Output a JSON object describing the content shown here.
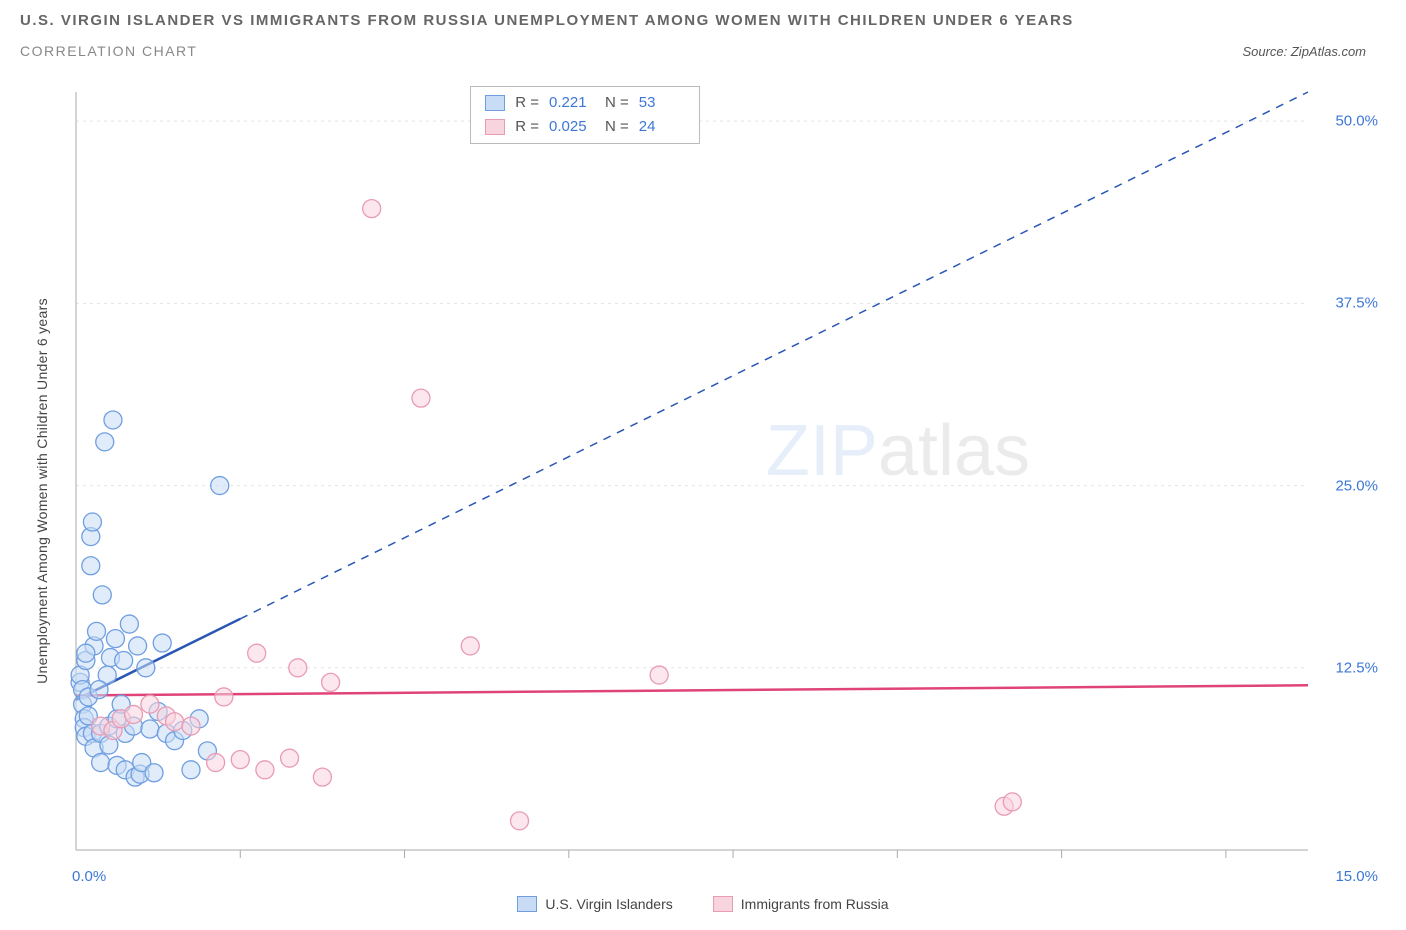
{
  "header": {
    "title_line1": "U.S. VIRGIN ISLANDER VS IMMIGRANTS FROM RUSSIA UNEMPLOYMENT AMONG WOMEN WITH CHILDREN UNDER 6 YEARS",
    "title_line2": "CORRELATION CHART",
    "source": "Source: ZipAtlas.com"
  },
  "chart": {
    "type": "scatter",
    "y_axis_label": "Unemployment Among Women with Children Under 6 years",
    "x_range": [
      0,
      15
    ],
    "y_range": [
      0,
      52
    ],
    "y_ticks": [
      12.5,
      25.0,
      37.5,
      50.0
    ],
    "y_tick_labels": [
      "12.5%",
      "25.0%",
      "37.5%",
      "50.0%"
    ],
    "x_ticks": [
      2,
      4,
      6,
      8,
      10,
      12,
      14
    ],
    "x_origin_label": "0.0%",
    "x_max_label": "15.0%",
    "background_color": "#ffffff",
    "grid_color": "#e4e4e4",
    "axis_color": "#aaaaaa",
    "legend_stats": [
      {
        "swatch_fill": "#c9dcf5",
        "swatch_border": "#6f9fe0",
        "R": "0.221",
        "N": "53"
      },
      {
        "swatch_fill": "#f8d4de",
        "swatch_border": "#e99bb3",
        "R": "0.025",
        "N": "24"
      }
    ],
    "bottom_legend": [
      {
        "swatch_fill": "#c9dcf5",
        "swatch_border": "#6f9fe0",
        "label": "U.S. Virgin Islanders"
      },
      {
        "swatch_fill": "#f8d4de",
        "swatch_border": "#e99bb3",
        "label": "Immigrants from Russia"
      }
    ],
    "watermark": {
      "bold": "ZIP",
      "rest": "atlas"
    },
    "series": [
      {
        "name": "usvi",
        "point_fill": "#c9dcf5",
        "point_stroke": "#6f9fe0",
        "point_radius": 9,
        "trend_color": "#2a56b5",
        "trend_solid_lim": 2.0,
        "trend": {
          "x1": 0,
          "y1": 10.3,
          "x2": 15,
          "y2": 52.0
        },
        "points": [
          [
            0.05,
            11.5
          ],
          [
            0.05,
            12.0
          ],
          [
            0.08,
            11.0
          ],
          [
            0.08,
            10.0
          ],
          [
            0.1,
            9.0
          ],
          [
            0.1,
            8.4
          ],
          [
            0.12,
            13.0
          ],
          [
            0.12,
            7.8
          ],
          [
            0.15,
            9.2
          ],
          [
            0.15,
            10.5
          ],
          [
            0.18,
            21.5
          ],
          [
            0.18,
            19.5
          ],
          [
            0.2,
            22.5
          ],
          [
            0.2,
            8.0
          ],
          [
            0.22,
            14.0
          ],
          [
            0.22,
            7.0
          ],
          [
            0.25,
            15.0
          ],
          [
            0.3,
            8.0
          ],
          [
            0.3,
            6.0
          ],
          [
            0.32,
            17.5
          ],
          [
            0.35,
            28.0
          ],
          [
            0.38,
            12.0
          ],
          [
            0.4,
            8.5
          ],
          [
            0.4,
            7.2
          ],
          [
            0.45,
            29.5
          ],
          [
            0.48,
            14.5
          ],
          [
            0.5,
            9.0
          ],
          [
            0.5,
            5.8
          ],
          [
            0.55,
            10.0
          ],
          [
            0.6,
            8.0
          ],
          [
            0.6,
            5.5
          ],
          [
            0.65,
            15.5
          ],
          [
            0.7,
            8.5
          ],
          [
            0.72,
            5.0
          ],
          [
            0.75,
            14.0
          ],
          [
            0.78,
            5.2
          ],
          [
            0.8,
            6.0
          ],
          [
            0.85,
            12.5
          ],
          [
            0.9,
            8.3
          ],
          [
            0.95,
            5.3
          ],
          [
            1.0,
            9.5
          ],
          [
            1.05,
            14.2
          ],
          [
            1.1,
            8.0
          ],
          [
            1.2,
            7.5
          ],
          [
            1.3,
            8.2
          ],
          [
            1.4,
            5.5
          ],
          [
            1.5,
            9.0
          ],
          [
            1.6,
            6.8
          ],
          [
            1.75,
            25.0
          ],
          [
            0.12,
            13.5
          ],
          [
            0.28,
            11.0
          ],
          [
            0.42,
            13.2
          ],
          [
            0.58,
            13.0
          ]
        ]
      },
      {
        "name": "russia",
        "point_fill": "#f8d4de",
        "point_stroke": "#e99bb3",
        "point_radius": 9,
        "trend_color": "#e0437a",
        "trend_solid_lim": 15.0,
        "trend": {
          "x1": 0,
          "y1": 10.6,
          "x2": 15,
          "y2": 11.3
        },
        "points": [
          [
            0.3,
            8.5
          ],
          [
            0.45,
            8.2
          ],
          [
            0.55,
            9.0
          ],
          [
            0.7,
            9.3
          ],
          [
            0.9,
            10.0
          ],
          [
            1.1,
            9.2
          ],
          [
            1.2,
            8.8
          ],
          [
            1.4,
            8.5
          ],
          [
            1.7,
            6.0
          ],
          [
            1.8,
            10.5
          ],
          [
            2.0,
            6.2
          ],
          [
            2.2,
            13.5
          ],
          [
            2.3,
            5.5
          ],
          [
            2.6,
            6.3
          ],
          [
            2.7,
            12.5
          ],
          [
            3.0,
            5.0
          ],
          [
            3.1,
            11.5
          ],
          [
            3.6,
            44.0
          ],
          [
            4.2,
            31.0
          ],
          [
            4.8,
            14.0
          ],
          [
            5.4,
            2.0
          ],
          [
            7.1,
            12.0
          ],
          [
            11.3,
            3.0
          ],
          [
            11.4,
            3.3
          ]
        ]
      }
    ]
  }
}
